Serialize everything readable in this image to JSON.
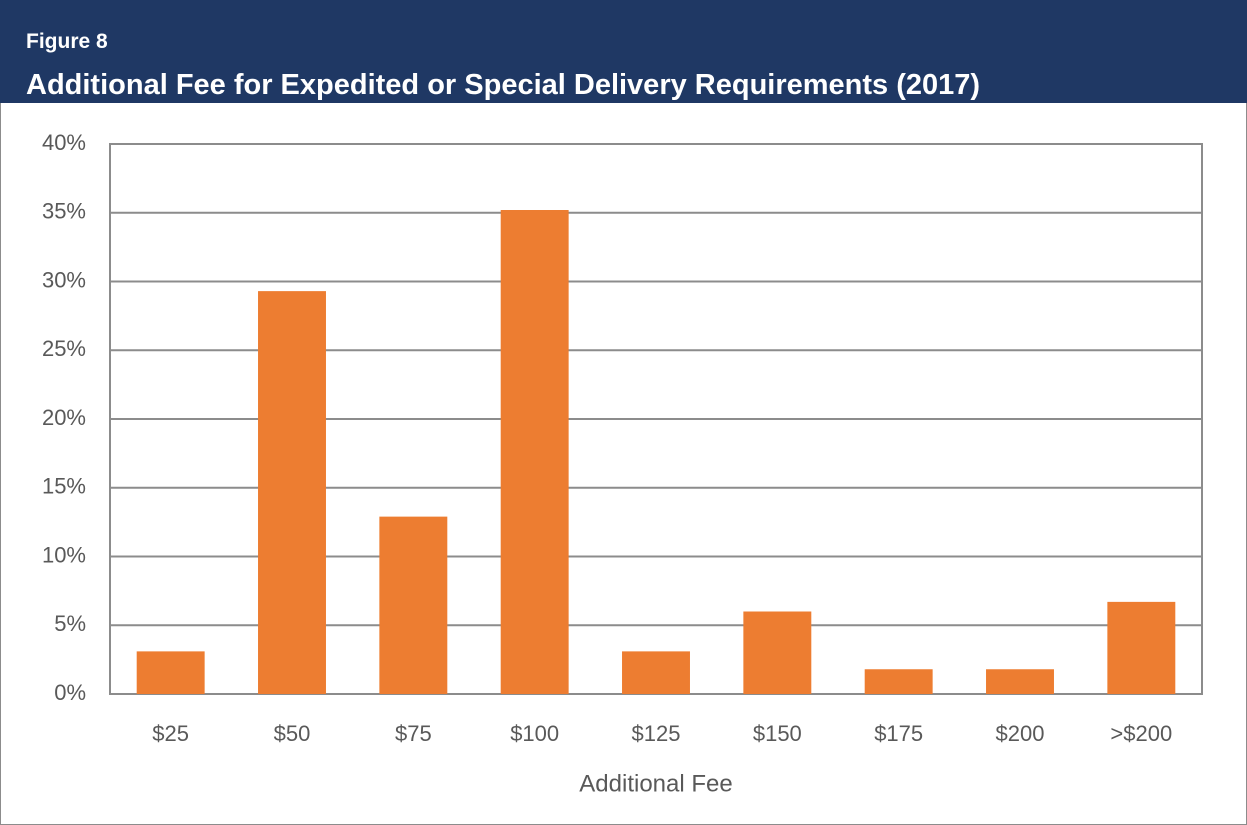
{
  "chart_data": {
    "type": "bar",
    "subtitle": "Figure 8",
    "title": "Additional Fee for Expedited or Special Delivery Requirements (2017)",
    "x_label": "Additional Fee",
    "categories": [
      "$25",
      "$50",
      "$75",
      "$100",
      "$125",
      "$150",
      "$175",
      "$200",
      ">$200"
    ],
    "values": [
      3.1,
      29.3,
      12.9,
      35.2,
      3.1,
      6.0,
      1.8,
      1.8,
      6.7
    ],
    "color": "#ed7d31",
    "ylim": [
      0,
      40
    ],
    "yticks": [
      {
        "value": 0,
        "label": "0%"
      },
      {
        "value": 5,
        "label": "5%"
      },
      {
        "value": 10,
        "label": "10%"
      },
      {
        "value": 15,
        "label": "15%"
      },
      {
        "value": 20,
        "label": "20%"
      },
      {
        "value": 25,
        "label": "25%"
      },
      {
        "value": 30,
        "label": "30%"
      },
      {
        "value": 35,
        "label": "35%"
      },
      {
        "value": 40,
        "label": "40%"
      }
    ],
    "grid": true
  }
}
